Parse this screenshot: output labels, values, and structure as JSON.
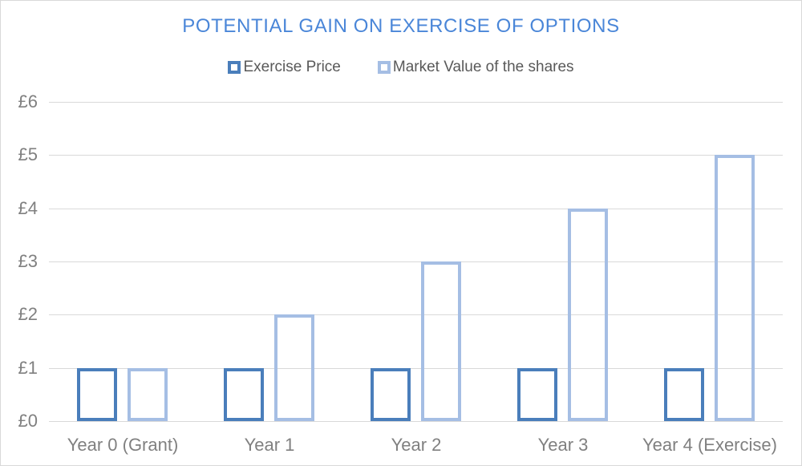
{
  "window": {
    "background": "#FFFFFF",
    "border_color": "#D9D9D9"
  },
  "chart_data": {
    "type": "bar",
    "title": "POTENTIAL GAIN ON EXERCISE OF OPTIONS",
    "title_color": "#4A86D8",
    "categories": [
      "Year 0 (Grant)",
      "Year 1",
      "Year 2",
      "Year 3",
      "Year 4 (Exercise)"
    ],
    "series": [
      {
        "name": "Exercise Price",
        "values": [
          1,
          1,
          1,
          1,
          1
        ],
        "color": "#4A7EBB",
        "bar_style": "outline"
      },
      {
        "name": "Market Value of the shares",
        "values": [
          1,
          2,
          3,
          4,
          5
        ],
        "color": "#A5BEE4",
        "bar_style": "outline"
      }
    ],
    "xlabel": "",
    "ylabel": "",
    "ylim": [
      0,
      6
    ],
    "yticks": [
      0,
      1,
      2,
      3,
      4,
      5,
      6
    ],
    "ytick_prefix": "£",
    "ytick_labels": [
      "£0",
      "£1",
      "£2",
      "£3",
      "£4",
      "£5",
      "£6"
    ],
    "grid": true,
    "gridline_color": "#D9D9D9",
    "axis_text_color": "#808080",
    "legend_position": "top",
    "legend_text_color": "#595959"
  }
}
